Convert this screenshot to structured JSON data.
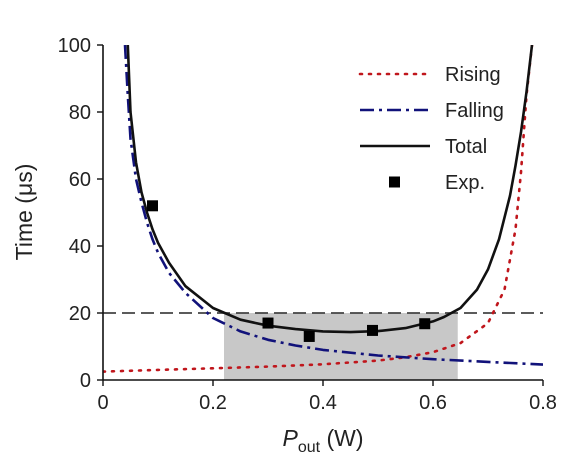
{
  "chart_data": {
    "type": "line",
    "xlabel": {
      "main": "P",
      "sub": "out",
      "unit": " (W)"
    },
    "ylabel": "Time (μs)",
    "xlim": [
      0,
      0.8
    ],
    "ylim": [
      0,
      100
    ],
    "x_ticks": [
      "0",
      "0.2",
      "0.4",
      "0.6",
      "0.8"
    ],
    "y_ticks": [
      "0",
      "20",
      "40",
      "60",
      "80",
      "100"
    ],
    "reference_line": {
      "y": 20,
      "style": "dashed"
    },
    "shaded_region": {
      "x": [
        0.22,
        0.645
      ],
      "y": [
        0,
        20
      ],
      "color": "#c8c8c8"
    },
    "series": [
      {
        "name": "Rising",
        "style": "dotted",
        "color": "#c0161c",
        "x": [
          0.0,
          0.1,
          0.2,
          0.3,
          0.4,
          0.5,
          0.55,
          0.6,
          0.65,
          0.7,
          0.73,
          0.75,
          0.76,
          0.77,
          0.78
        ],
        "y": [
          2.5,
          3.0,
          3.5,
          4.0,
          4.7,
          5.8,
          6.8,
          8.3,
          11.0,
          17.0,
          27.0,
          45.0,
          62.0,
          85.0,
          100.0
        ]
      },
      {
        "name": "Falling",
        "style": "dashdot",
        "color": "#11127a",
        "x": [
          0.04,
          0.045,
          0.05,
          0.06,
          0.07,
          0.08,
          0.09,
          0.1,
          0.12,
          0.15,
          0.2,
          0.25,
          0.3,
          0.35,
          0.4,
          0.5,
          0.6,
          0.7,
          0.8
        ],
        "y": [
          100.0,
          85.0,
          72.0,
          60.0,
          53.0,
          47.0,
          42.0,
          38.0,
          32.0,
          26.0,
          18.5,
          14.5,
          12.0,
          10.3,
          9.0,
          7.3,
          6.2,
          5.4,
          4.6
        ]
      },
      {
        "name": "Total",
        "style": "solid",
        "color": "#111111",
        "x": [
          0.045,
          0.05,
          0.06,
          0.07,
          0.08,
          0.09,
          0.1,
          0.12,
          0.15,
          0.2,
          0.25,
          0.3,
          0.35,
          0.4,
          0.45,
          0.5,
          0.55,
          0.6,
          0.62,
          0.65,
          0.68,
          0.7,
          0.72,
          0.74,
          0.75,
          0.76,
          0.77,
          0.78
        ],
        "y": [
          100.0,
          80.0,
          65.0,
          56.0,
          50.0,
          45.0,
          41.0,
          35.0,
          28.0,
          21.5,
          18.0,
          16.2,
          15.2,
          14.5,
          14.3,
          14.6,
          15.5,
          17.5,
          18.8,
          21.5,
          27.0,
          33.0,
          42.0,
          55.0,
          64.0,
          74.0,
          86.0,
          100.0
        ]
      }
    ],
    "points": {
      "name": "Exp.",
      "marker": "square",
      "color": "#000000",
      "x": [
        0.09,
        0.3,
        0.375,
        0.49,
        0.585
      ],
      "y": [
        52.0,
        17.0,
        13.0,
        14.8,
        16.8
      ]
    },
    "legend_position": "top-right",
    "legend_order": [
      "Rising",
      "Falling",
      "Total",
      "Exp."
    ]
  }
}
